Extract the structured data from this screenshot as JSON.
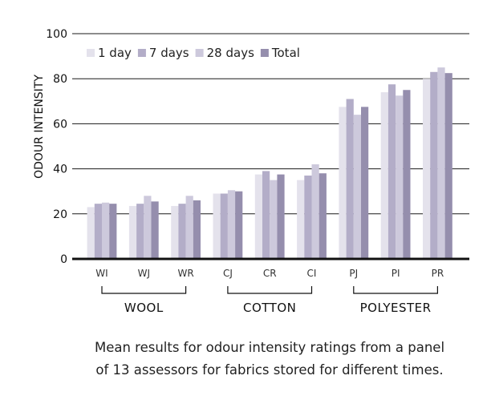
{
  "chart_data": {
    "type": "bar",
    "title": "",
    "ylabel": "ODOUR INTENSITY",
    "xlabel": "",
    "ylim": [
      0,
      100
    ],
    "yticks": [
      0,
      20,
      40,
      60,
      80,
      100
    ],
    "grid": true,
    "legend_position": "top-left",
    "categories": [
      "WI",
      "WJ",
      "WR",
      "CJ",
      "CR",
      "CI",
      "PJ",
      "PI",
      "PR"
    ],
    "groups": [
      {
        "label": "WOOL",
        "categories": [
          "WI",
          "WJ",
          "WR"
        ]
      },
      {
        "label": "COTTON",
        "categories": [
          "CJ",
          "CR",
          "CI"
        ]
      },
      {
        "label": "POLYESTER",
        "categories": [
          "PJ",
          "PI",
          "PR"
        ]
      }
    ],
    "series": [
      {
        "name": "1 day",
        "color": "#e4e2ec",
        "values": [
          23,
          23.5,
          23.5,
          29,
          37.5,
          35,
          67.5,
          74,
          80
        ]
      },
      {
        "name": "7 days",
        "color": "#b3adc8",
        "values": [
          24.5,
          24.5,
          24.5,
          29,
          39,
          37,
          71,
          77.5,
          83
        ]
      },
      {
        "name": "28 days",
        "color": "#cdc9dc",
        "values": [
          25,
          28,
          28,
          30.5,
          35,
          42,
          64,
          72.5,
          85
        ]
      },
      {
        "name": "Total",
        "color": "#958ead",
        "values": [
          24.5,
          25.5,
          26,
          30,
          37.5,
          38,
          67.5,
          75,
          82.5
        ]
      }
    ]
  },
  "caption": {
    "line1": "Mean results for odour intensity ratings from a panel",
    "line2": "of 13 assessors for fabrics stored for different times."
  }
}
